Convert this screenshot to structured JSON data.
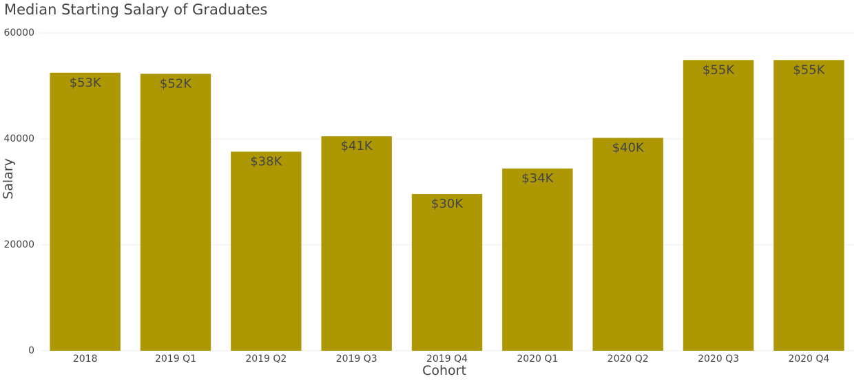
{
  "chart_data": {
    "type": "bar",
    "title": "Median Starting Salary of Graduates",
    "xlabel": "Cohort",
    "ylabel": "Salary",
    "categories": [
      "2018",
      "2019 Q1",
      "2019 Q2",
      "2019 Q3",
      "2019 Q4",
      "2020 Q1",
      "2020 Q2",
      "2020 Q3",
      "2020 Q4"
    ],
    "values": [
      52500,
      52300,
      37600,
      40500,
      29600,
      34400,
      40200,
      54900,
      54900
    ],
    "data_labels": [
      "$53K",
      "$52K",
      "$38K",
      "$41K",
      "$30K",
      "$34K",
      "$40K",
      "$55K",
      "$55K"
    ],
    "ylim": [
      0,
      60000
    ],
    "yticks": [
      0,
      20000,
      40000,
      60000
    ],
    "ytick_labels": [
      "0",
      "20000",
      "40000",
      "60000"
    ],
    "grid": true,
    "legend": "none",
    "bar_color": "#ad9804",
    "text_color": "#444444",
    "grid_color": "#ececec"
  }
}
